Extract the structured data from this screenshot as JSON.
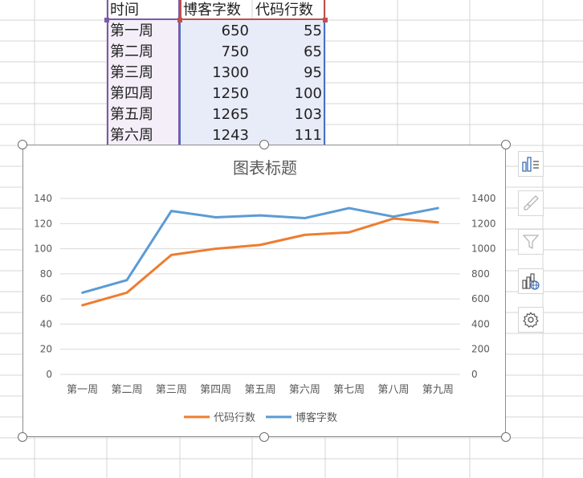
{
  "sheet": {
    "columns": [
      "时间",
      "博客字数",
      "代码行数"
    ],
    "rows": [
      [
        "第一周",
        "650",
        "55"
      ],
      [
        "第二周",
        "750",
        "65"
      ],
      [
        "第三周",
        "1300",
        "95"
      ],
      [
        "第四周",
        "1250",
        "100"
      ],
      [
        "第五周",
        "1265",
        "103"
      ],
      [
        "第六周",
        "1243",
        "111"
      ]
    ]
  },
  "colors": {
    "series_orange": "#ED7D31",
    "series_blue": "#5B9BD5",
    "range_purple": "#7E5AA8",
    "range_red": "#C0504D",
    "range_blue": "#4A6FC1",
    "purple_fill": "#F3EEF8",
    "blue_fill": "#E8ECF8"
  },
  "chart_data": {
    "type": "line",
    "title": "图表标题",
    "categories": [
      "第一周",
      "第二周",
      "第三周",
      "第四周",
      "第五周",
      "第六周",
      "第七周",
      "第八周",
      "第九周"
    ],
    "series": [
      {
        "name": "代码行数",
        "axis": "left",
        "color": "#ED7D31",
        "values": [
          55,
          65,
          95,
          100,
          103,
          111,
          113,
          124,
          121
        ]
      },
      {
        "name": "博客字数",
        "axis": "right",
        "color": "#5B9BD5",
        "values": [
          650,
          750,
          1300,
          1250,
          1265,
          1243,
          1323,
          1255,
          1323
        ]
      }
    ],
    "y_left": {
      "min": 0,
      "max": 140,
      "ticks": [
        "0",
        "20",
        "40",
        "60",
        "80",
        "100",
        "120",
        "140"
      ]
    },
    "y_right": {
      "min": 0,
      "max": 1400,
      "ticks": [
        "0",
        "200",
        "400",
        "600",
        "800",
        "1000",
        "1200",
        "1400"
      ]
    },
    "grid": true,
    "legend": "bottom"
  },
  "side_tools": [
    {
      "icon": "chart-elements-icon"
    },
    {
      "icon": "chart-styles-icon"
    },
    {
      "icon": "chart-filters-icon"
    },
    {
      "icon": "chart-type-icon"
    },
    {
      "icon": "chart-settings-icon"
    }
  ]
}
